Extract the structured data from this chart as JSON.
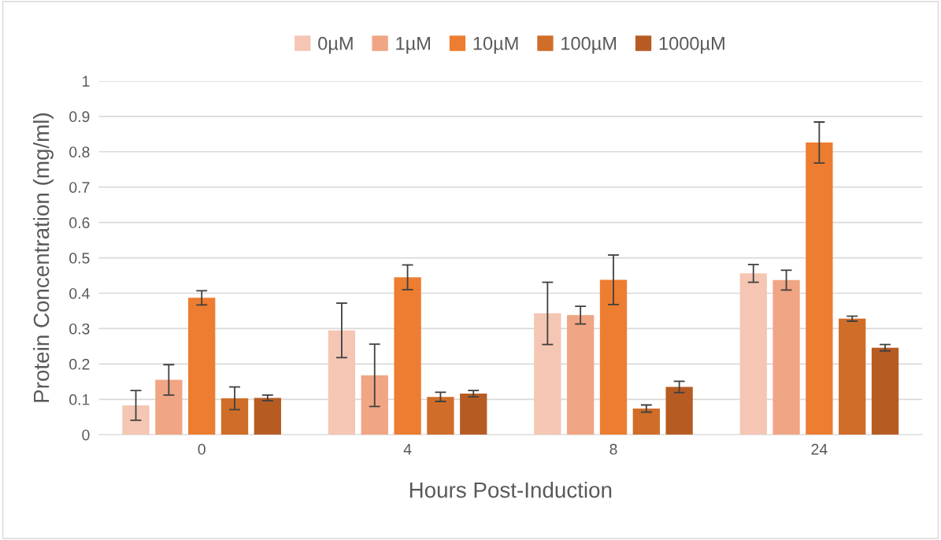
{
  "chart_data": {
    "type": "bar",
    "xlabel": "Hours Post-Induction",
    "ylabel": "Protein Concentration (mg/ml)",
    "categories": [
      "0",
      "4",
      "8",
      "24"
    ],
    "series": [
      {
        "name": "0µM",
        "color": "#f4c6b3",
        "values": [
          0.083,
          0.295,
          0.343,
          0.456
        ],
        "errors": [
          0.042,
          0.077,
          0.088,
          0.025
        ]
      },
      {
        "name": "1µM",
        "color": "#f0a584",
        "values": [
          0.155,
          0.168,
          0.338,
          0.437
        ],
        "errors": [
          0.043,
          0.088,
          0.025,
          0.028
        ]
      },
      {
        "name": "10µM",
        "color": "#ed7d31",
        "values": [
          0.387,
          0.445,
          0.438,
          0.826
        ],
        "errors": [
          0.02,
          0.035,
          0.07,
          0.058
        ]
      },
      {
        "name": "100µM",
        "color": "#d06d28",
        "values": [
          0.103,
          0.107,
          0.074,
          0.328
        ],
        "errors": [
          0.032,
          0.013,
          0.01,
          0.007
        ]
      },
      {
        "name": "1000µM",
        "color": "#b65c23",
        "values": [
          0.104,
          0.116,
          0.135,
          0.246
        ],
        "errors": [
          0.008,
          0.009,
          0.016,
          0.009
        ]
      }
    ],
    "ylim": [
      0,
      1
    ],
    "yticks": [
      0,
      0.1,
      0.2,
      0.3,
      0.4,
      0.5,
      0.6,
      0.7,
      0.8,
      0.9,
      1
    ],
    "grid": "y",
    "legend": "top"
  }
}
